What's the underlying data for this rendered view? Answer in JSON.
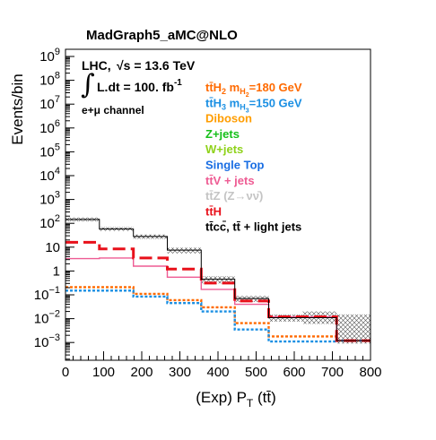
{
  "chart_data": {
    "type": "histogram",
    "title": "MadGraph5_aMC@NLO",
    "xlabel": "(Exp) P_T (tt̄)",
    "xlabel_parts": {
      "main": "(Exp) P",
      "sub": "T",
      "tail": " (tt̄)"
    },
    "ylabel": "Events/bin",
    "yscale": "log",
    "xlim": [
      0,
      800
    ],
    "ylim": [
      0.00018,
      2000000000
    ],
    "x_ticks": [
      0,
      100,
      200,
      300,
      400,
      500,
      600,
      700,
      800
    ],
    "x_tick_labels": [
      "0",
      "100",
      "200",
      "300",
      "400",
      "500",
      "600",
      "700",
      "800"
    ],
    "y_tick_labels": [
      {
        "value": 0.001,
        "base": "10",
        "exp": "−3"
      },
      {
        "value": 0.01,
        "base": "10",
        "exp": "−2"
      },
      {
        "value": 0.1,
        "base": "10",
        "exp": "−1"
      },
      {
        "value": 1,
        "base": "1",
        "exp": ""
      },
      {
        "value": 10,
        "base": "10",
        "exp": ""
      },
      {
        "value": 100,
        "base": "10",
        "exp": "2"
      },
      {
        "value": 1000,
        "base": "10",
        "exp": "3"
      },
      {
        "value": 10000,
        "base": "10",
        "exp": "4"
      },
      {
        "value": 100000,
        "base": "10",
        "exp": "5"
      },
      {
        "value": 1000000,
        "base": "10",
        "exp": "6"
      },
      {
        "value": 10000000,
        "base": "10",
        "exp": "7"
      },
      {
        "value": 100000000,
        "base": "10",
        "exp": "8"
      },
      {
        "value": 1000000000,
        "base": "10",
        "exp": "9"
      }
    ],
    "bin_edges": [
      0,
      89,
      178,
      267,
      356,
      444,
      533,
      622,
      711,
      800
    ],
    "annotations": {
      "lhc": "LHC,",
      "sqrt_s": "√s = 13.6 TeV",
      "lumi": "L.dt = 100. fb",
      "lumi_exp": "-1",
      "channel": "e+μ channel"
    },
    "series": [
      {
        "name": "tt̄ + light jets (total SM)",
        "color": "#000000",
        "style": "solid-thin",
        "values": [
          145,
          58,
          28,
          7.5,
          0.45,
          0.07,
          0.011,
          0.011,
          0.0012
        ],
        "uncertainty": [
          [
            120,
            175
          ],
          [
            48,
            70
          ],
          [
            22,
            34
          ],
          [
            5.5,
            9.5
          ],
          [
            0.3,
            0.6
          ],
          [
            0.05,
            0.09
          ],
          [
            0.0075,
            0.015
          ],
          [
            0.006,
            0.02
          ],
          [
            0.0009,
            0.015
          ]
        ]
      },
      {
        "name": "tt̄H",
        "color": "#e8101a",
        "style": "dashed-thick",
        "values": [
          16,
          8.5,
          3.5,
          1.2,
          0.31,
          0.055,
          0.012,
          0.012,
          0.0012
        ]
      },
      {
        "name": "tt̄V + jets",
        "color": "#ee5b93",
        "style": "solid",
        "values": [
          3.3,
          3.5,
          1.6,
          0.55,
          0.17,
          0.04,
          0.012,
          0.012,
          0.0012
        ]
      },
      {
        "name": "tt̄H2 mH2=180 GeV",
        "color": "#ff6a00",
        "style": "dotted",
        "values": [
          0.21,
          0.21,
          0.11,
          0.06,
          0.03,
          0.0065,
          0.0018,
          0.0018,
          0.0012
        ]
      },
      {
        "name": "tt̄H3 mH3=150 GeV",
        "color": "#1a8fe3",
        "style": "dotted",
        "values": [
          0.15,
          0.15,
          0.085,
          0.045,
          0.02,
          0.0035,
          0.0011,
          0.0011,
          0.0012
        ]
      }
    ],
    "legend": [
      {
        "parts": [
          {
            "t": "tt̄H"
          },
          {
            "t": "2",
            "sub": true
          },
          {
            "t": " m"
          },
          {
            "t": "H",
            "sub": true
          },
          {
            "t": "2",
            "subsub": true
          },
          {
            "t": "=180 GeV"
          }
        ],
        "color": "#ff6a00"
      },
      {
        "parts": [
          {
            "t": "tt̄H"
          },
          {
            "t": "3",
            "sub": true
          },
          {
            "t": " m"
          },
          {
            "t": "H",
            "sub": true
          },
          {
            "t": "3",
            "subsub": true
          },
          {
            "t": "=150 GeV"
          }
        ],
        "color": "#1a8fe3"
      },
      {
        "parts": [
          {
            "t": "Diboson"
          }
        ],
        "color": "#ff9d00"
      },
      {
        "parts": [
          {
            "t": "Z+jets"
          }
        ],
        "color": "#16c01a"
      },
      {
        "parts": [
          {
            "t": "W+jets"
          }
        ],
        "color": "#8fd21a"
      },
      {
        "parts": [
          {
            "t": "Single Top"
          }
        ],
        "color": "#1a6ee3"
      },
      {
        "parts": [
          {
            "t": "tt̄V + jets"
          }
        ],
        "color": "#ee5b93"
      },
      {
        "parts": [
          {
            "t": "tt̄Z (Z→νν̄)"
          }
        ],
        "color": "#c4c4c4"
      },
      {
        "parts": [
          {
            "t": "tt̄H"
          }
        ],
        "color": "#e8101a"
      },
      {
        "parts": [
          {
            "t": "tt̄cc̄, tt̄ + light jets"
          }
        ],
        "color": "#000000"
      }
    ],
    "legend_placement": "upper-right",
    "grid": false
  }
}
